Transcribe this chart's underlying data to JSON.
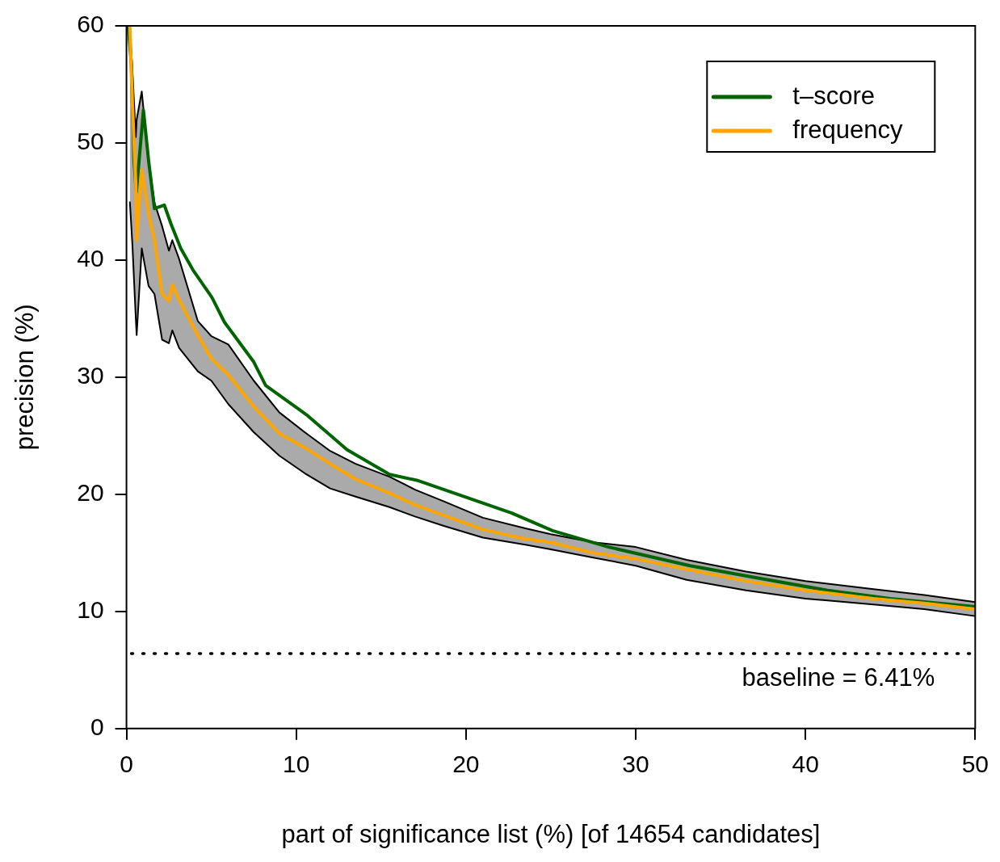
{
  "chart_data": {
    "type": "line",
    "xlabel": "part of significance list (%) [of 14654 candidates]",
    "ylabel": "precision (%)",
    "xlim": [
      0,
      50
    ],
    "xticks": [
      0,
      10,
      20,
      30,
      40,
      50
    ],
    "ylim": [
      0,
      60
    ],
    "yticks": [
      0,
      10,
      20,
      30,
      40,
      50,
      60
    ],
    "grid": false,
    "legend": "top right",
    "marker": "none",
    "line_style": "solid",
    "series": [
      {
        "color": "#000000",
        "x": [
          0.2,
          0.35,
          0.55,
          0.6,
          0.9,
          1.3,
          1.65,
          2.1,
          2.5,
          2.7,
          3.1,
          4.2,
          5,
          6,
          7.5,
          9,
          10.5,
          12,
          13.5,
          15.5,
          17,
          18.7,
          21,
          23.5,
          25,
          27.5,
          30,
          33,
          36.5,
          40,
          44,
          47,
          50
        ],
        "values": [
          60,
          56.2,
          50.5,
          52,
          54.4,
          48.6,
          44.9,
          42.9,
          40.8,
          41.7,
          40.1,
          34.8,
          33.5,
          32.8,
          29.7,
          27.0,
          25.3,
          23.7,
          22.6,
          21.5,
          20.4,
          19.4,
          18.0,
          17.1,
          16.6,
          15.9,
          15.5,
          14.4,
          13.4,
          12.6,
          11.9,
          11.4,
          10.8
        ]
      },
      {
        "color": "#000000",
        "x": [
          0.2,
          0.35,
          0.55,
          0.6,
          0.9,
          1.3,
          1.65,
          2.1,
          2.5,
          2.7,
          3.1,
          4.2,
          5,
          6,
          7.5,
          9,
          10.5,
          12,
          13.5,
          15.5,
          17,
          18.7,
          21,
          23.5,
          25,
          27.5,
          30,
          33,
          36.5,
          40,
          44,
          47,
          50
        ],
        "values": [
          45,
          41.3,
          35,
          33.6,
          41.0,
          37.8,
          37.1,
          33.2,
          32.9,
          34.0,
          32.5,
          30.5,
          29.7,
          27.7,
          25.3,
          23.3,
          21.8,
          20.5,
          19.8,
          18.9,
          18.1,
          17.3,
          16.3,
          15.7,
          15.3,
          14.6,
          13.9,
          12.7,
          11.8,
          11.1,
          10.6,
          10.2,
          9.6
        ]
      },
      {
        "name": "t–score",
        "color": "#006400",
        "x": [
          0.1,
          0.29,
          0.44,
          0.58,
          1.0,
          1.31,
          1.65,
          2.23,
          2.62,
          3.2,
          3.9,
          5.04,
          5.77,
          7.5,
          8.2,
          10.6,
          13.0,
          15.5,
          17.1,
          20.3,
          22.7,
          25.1,
          28.4,
          33.2,
          37,
          41.3,
          45,
          50
        ],
        "values": [
          60,
          56.7,
          48.6,
          45.8,
          52.8,
          48.4,
          44.4,
          44.7,
          43.1,
          41.0,
          39.2,
          36.8,
          34.7,
          31.3,
          29.3,
          26.8,
          23.8,
          21.7,
          21.2,
          19.6,
          18.4,
          16.9,
          15.5,
          13.9,
          12.9,
          11.8,
          11.1,
          10.4
        ]
      },
      {
        "name": "frequency",
        "color": "#ffa500",
        "x": [
          0.2,
          0.35,
          0.55,
          0.6,
          0.9,
          1.3,
          1.65,
          2.1,
          2.5,
          2.7,
          3.1,
          4.2,
          5,
          6,
          7.5,
          9,
          10.5,
          12,
          13.5,
          15.5,
          17,
          18.7,
          21,
          23.5,
          25,
          27.5,
          30,
          33,
          36.5,
          40,
          44,
          47,
          50
        ],
        "values": [
          60,
          53.3,
          46.5,
          41.7,
          47.7,
          44,
          41.7,
          37.1,
          36.5,
          37.9,
          36.6,
          33.6,
          31.6,
          30.2,
          27.5,
          25.2,
          24.0,
          22.6,
          21.3,
          20.1,
          19.1,
          18.2,
          17.0,
          16.2,
          15.9,
          15.0,
          14.5,
          13.6,
          12.6,
          11.8,
          11.1,
          10.7,
          10.2
        ],
        "upper": [
          60,
          56.2,
          50.5,
          52,
          54.4,
          48.6,
          44.9,
          42.9,
          40.8,
          41.7,
          40.1,
          34.8,
          33.5,
          32.8,
          29.7,
          27.0,
          25.3,
          23.7,
          22.6,
          21.5,
          20.4,
          19.4,
          18.0,
          17.1,
          16.6,
          15.9,
          15.5,
          14.4,
          13.4,
          12.6,
          11.9,
          11.4,
          10.8
        ],
        "lower": [
          45,
          41.3,
          35,
          33.6,
          41.0,
          37.8,
          37.1,
          33.2,
          32.9,
          34.0,
          32.5,
          30.5,
          29.7,
          27.7,
          25.3,
          23.3,
          21.8,
          20.5,
          19.8,
          18.9,
          18.1,
          17.3,
          16.3,
          15.7,
          15.3,
          14.6,
          13.9,
          12.7,
          11.8,
          11.1,
          10.6,
          10.2,
          9.6
        ]
      }
    ],
    "ref_lines": [
      {
        "axis": "y",
        "value": 6.41,
        "label": "baseline = 6.41%",
        "color": "#000000",
        "line_style": "dotted"
      }
    ]
  }
}
